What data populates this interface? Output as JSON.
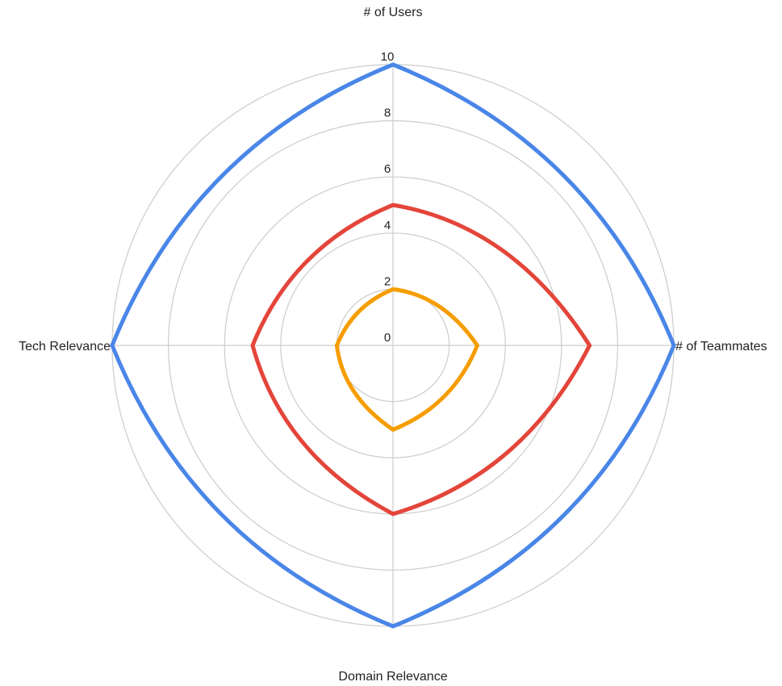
{
  "chart_data": {
    "type": "radar",
    "axes": [
      "# of Users",
      "# of Teammates",
      "Domain Relevance",
      "Tech Relevance"
    ],
    "rlim": [
      0,
      10
    ],
    "ticks": [
      "0",
      "2",
      "4",
      "6",
      "8",
      "10"
    ],
    "tick_values": [
      0,
      2,
      4,
      6,
      8,
      10
    ],
    "grid": true,
    "curved": true,
    "series": [
      {
        "color": "#4a86e8",
        "values": [
          10,
          10,
          10,
          10
        ]
      },
      {
        "color": "#e4453a",
        "values": [
          5,
          7,
          6,
          5
        ]
      },
      {
        "color": "#f59d00",
        "values": [
          2,
          3,
          3,
          2
        ]
      }
    ]
  }
}
